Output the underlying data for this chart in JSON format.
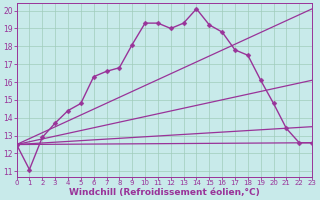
{
  "lines": [
    {
      "x": [
        0,
        1,
        2,
        3,
        4,
        5,
        6,
        7,
        8,
        9,
        10,
        11,
        12,
        13,
        14,
        15,
        16,
        17,
        18,
        19,
        20,
        21,
        22,
        23
      ],
      "y": [
        12.5,
        11.1,
        12.9,
        13.7,
        14.4,
        14.8,
        16.3,
        16.6,
        16.8,
        18.1,
        19.3,
        19.3,
        19.0,
        19.3,
        20.1,
        19.2,
        18.8,
        17.8,
        17.5,
        16.1,
        14.8,
        13.4,
        12.6,
        12.6
      ],
      "color": "#993399",
      "marker": "D",
      "markersize": 2.5,
      "linewidth": 1.0
    },
    {
      "x": [
        0,
        23
      ],
      "y": [
        12.5,
        20.1
      ],
      "color": "#993399",
      "marker": null,
      "linewidth": 0.9
    },
    {
      "x": [
        0,
        23
      ],
      "y": [
        12.5,
        16.1
      ],
      "color": "#993399",
      "marker": null,
      "linewidth": 0.9
    },
    {
      "x": [
        0,
        23
      ],
      "y": [
        12.5,
        13.5
      ],
      "color": "#993399",
      "marker": null,
      "linewidth": 0.9
    },
    {
      "x": [
        0,
        23
      ],
      "y": [
        12.5,
        12.6
      ],
      "color": "#993399",
      "marker": null,
      "linewidth": 0.9
    }
  ],
  "xlim": [
    0,
    23
  ],
  "ylim": [
    10.7,
    20.4
  ],
  "xticks": [
    0,
    1,
    2,
    3,
    4,
    5,
    6,
    7,
    8,
    9,
    10,
    11,
    12,
    13,
    14,
    15,
    16,
    17,
    18,
    19,
    20,
    21,
    22,
    23
  ],
  "yticks": [
    11,
    12,
    13,
    14,
    15,
    16,
    17,
    18,
    19,
    20
  ],
  "xlabel": "Windchill (Refroidissement éolien,°C)",
  "bg_color": "#c8eaea",
  "grid_color": "#a0ccbb",
  "tick_color": "#993399",
  "label_color": "#993399",
  "axis_color": "#993399",
  "xtick_fontsize": 5.0,
  "ytick_fontsize": 5.5,
  "xlabel_fontsize": 6.5
}
